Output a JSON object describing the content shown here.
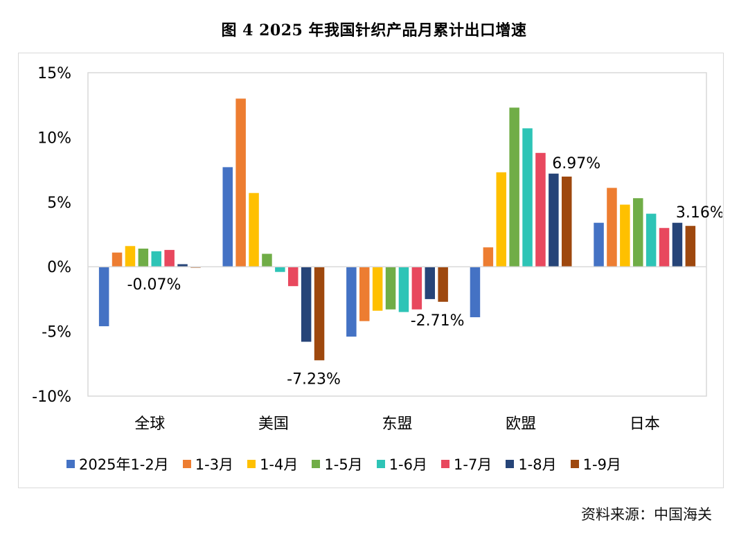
{
  "figure_title": "图 4   2025 年我国针织产品月累计出口增速",
  "source": "资料来源：中国海关",
  "chart_data": {
    "type": "bar",
    "title": "",
    "xlabel": "",
    "ylabel": "",
    "ylim": [
      -10,
      15
    ],
    "yticks": [
      "15%",
      "10%",
      "5%",
      "0%",
      "-5%",
      "-10%"
    ],
    "ytick_values": [
      15,
      10,
      5,
      0,
      -5,
      -10
    ],
    "grid": false,
    "legend_position": "bottom",
    "categories": [
      "全球",
      "美国",
      "东盟",
      "欧盟",
      "日本"
    ],
    "series": [
      {
        "name": "2025年1-2月",
        "color": "#4472C4",
        "values": [
          -4.6,
          7.7,
          -5.4,
          -3.9,
          3.4
        ]
      },
      {
        "name": "1-3月",
        "color": "#ED7D31",
        "values": [
          1.1,
          13.0,
          -4.2,
          1.5,
          6.1
        ]
      },
      {
        "name": "1-4月",
        "color": "#FFC000",
        "values": [
          1.6,
          5.7,
          -3.4,
          7.3,
          4.8
        ]
      },
      {
        "name": "1-5月",
        "color": "#70AD47",
        "values": [
          1.4,
          1.0,
          -3.3,
          12.3,
          5.3
        ]
      },
      {
        "name": "1-6月",
        "color": "#2EC4B6",
        "values": [
          1.2,
          -0.4,
          -3.5,
          10.7,
          4.1
        ]
      },
      {
        "name": "1-7月",
        "color": "#E8485E",
        "values": [
          1.3,
          -1.5,
          -3.3,
          8.8,
          3.0
        ]
      },
      {
        "name": "1-8月",
        "color": "#264478",
        "values": [
          0.2,
          -5.8,
          -2.5,
          7.2,
          3.4
        ]
      },
      {
        "name": "1-9月",
        "color": "#9E480E",
        "values": [
          -0.07,
          -7.23,
          -2.71,
          6.97,
          3.16
        ]
      }
    ],
    "annotations": [
      {
        "category": "全球",
        "series": "1-9月",
        "text": "-0.07%"
      },
      {
        "category": "美国",
        "series": "1-9月",
        "text": "-7.23%"
      },
      {
        "category": "东盟",
        "series": "1-9月",
        "text": "-2.71%"
      },
      {
        "category": "欧盟",
        "series": "1-9月",
        "text": "6.97%"
      },
      {
        "category": "日本",
        "series": "1-9月",
        "text": "3.16%"
      }
    ]
  }
}
